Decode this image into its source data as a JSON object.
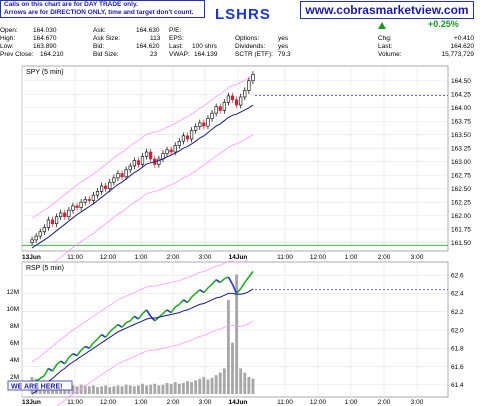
{
  "note": {
    "line1": "Calls on this chart are for DAY TRADE only.",
    "line2": "Arrows are for DIRECTION ONLY, time and target don't count."
  },
  "ticker": "LSHRS",
  "site": "www.cobrasmarketview.com",
  "quote": {
    "open_label": "Open:",
    "open": "164.030",
    "high_label": "High:",
    "high": "164.670",
    "low_label": "Low:",
    "low": "163.890",
    "prevclose_label": "Prev Close:",
    "prevclose": "164.210",
    "ask_label": "Ask:",
    "ask": "164.630",
    "asksize_label": "Ask Size:",
    "asksize": "113",
    "bid_label": "Bid:",
    "bid": "164.620",
    "bidsize_label": "Bid Size:",
    "bidsize": "23",
    "pe_label": "P/E:",
    "pe": "",
    "eps_label": "EPS:",
    "eps": "",
    "last_label": "Last:",
    "last_size": "100 shrs",
    "vwap_label": "VWAP:",
    "vwap": "164.139",
    "options_label": "Options:",
    "options": "yes",
    "dividends_label": "Dividends:",
    "dividends": "yes",
    "sctr_label": "SCTR (ETF):",
    "sctr": "79.3",
    "change_pct": "+0.25%",
    "chg_label": "Chg:",
    "chg": "+0.410",
    "last2_label": "Last:",
    "last2": "164.620",
    "volume_label": "Volume:",
    "volume": "15,773,729"
  },
  "colors": {
    "up": "#1a9a1a",
    "down": "#cc2233",
    "ma": "#1a1a8a",
    "band": "#ff99ff",
    "dotted": "#3333cc",
    "rsp_green": "#22aa22",
    "rsp_blue": "#2233cc"
  },
  "chart_data": [
    {
      "type": "candlestick",
      "label": "SPY (5 min)",
      "ylim": [
        161.4,
        164.7
      ],
      "yticks": [
        161.5,
        161.75,
        162.0,
        162.25,
        162.5,
        162.75,
        163.0,
        163.25,
        163.5,
        163.75,
        164.0,
        164.25,
        164.5
      ],
      "ytick_labels": [
        "161.50",
        "161.75",
        "162.00",
        "162.25",
        "162.50",
        "162.75",
        "163.00",
        "163.25",
        "163.50",
        "163.75",
        "164.00",
        "164.25",
        "164.50"
      ],
      "x_labels": [
        "13Jun",
        "11:00",
        "12:00",
        "1:00",
        "2:00",
        "3:00",
        "14Jun",
        "11:00",
        "12:00",
        "1:00",
        "2:00",
        "3:00"
      ],
      "close": [
        161.55,
        161.62,
        161.7,
        161.78,
        161.92,
        161.85,
        161.98,
        162.05,
        161.98,
        162.1,
        162.18,
        162.15,
        162.25,
        162.3,
        162.28,
        162.38,
        162.45,
        162.55,
        162.5,
        162.62,
        162.7,
        162.78,
        162.72,
        162.85,
        162.92,
        163.02,
        162.95,
        163.1,
        163.18,
        163.05,
        162.95,
        163.05,
        163.15,
        163.22,
        163.18,
        163.3,
        163.38,
        163.48,
        163.42,
        163.58,
        163.65,
        163.72,
        163.66,
        163.8,
        163.9,
        164.02,
        163.95,
        164.1,
        164.22,
        164.15,
        164.05,
        164.2,
        164.32,
        164.5,
        164.62
      ],
      "moving_average": [
        161.4,
        161.45,
        161.5,
        161.55,
        161.6,
        161.66,
        161.72,
        161.78,
        161.84,
        161.9,
        161.96,
        162.02,
        162.07,
        162.12,
        162.17,
        162.22,
        162.28,
        162.34,
        162.4,
        162.46,
        162.52,
        162.58,
        162.62,
        162.68,
        162.74,
        162.8,
        162.84,
        162.9,
        162.96,
        162.98,
        163.0,
        163.02,
        163.05,
        163.09,
        163.12,
        163.16,
        163.2,
        163.25,
        163.28,
        163.33,
        163.38,
        163.44,
        163.48,
        163.54,
        163.6,
        163.66,
        163.7,
        163.76,
        163.82,
        163.86,
        163.88,
        163.92,
        163.96,
        164.0,
        164.05
      ],
      "dotted_level": 164.23
    },
    {
      "type": "line+bar",
      "label": "RSP (5 min)",
      "ylim": [
        61.3,
        62.7
      ],
      "yticks": [
        61.4,
        61.6,
        61.8,
        62.0,
        62.2,
        62.4,
        62.6
      ],
      "ytick_labels": [
        "61.4",
        "61.6",
        "61.8",
        "62.0",
        "62.2",
        "62.4",
        "62.6"
      ],
      "volume_ticks": [
        "2M",
        "4M",
        "6M",
        "8M",
        "10M",
        "12M"
      ],
      "volume_tick_values": [
        2,
        4,
        6,
        8,
        10,
        12
      ],
      "volume_max": 15,
      "x_labels": [
        "13Jun",
        "11:00",
        "12:00",
        "1:00",
        "2:00",
        "3:00",
        "14Jun",
        "11:00",
        "12:00",
        "1:00",
        "2:00",
        "3:00"
      ],
      "close": [
        61.4,
        61.44,
        61.47,
        61.5,
        61.58,
        61.55,
        61.62,
        61.66,
        61.63,
        61.7,
        61.74,
        61.72,
        61.78,
        61.82,
        61.8,
        61.86,
        61.9,
        61.95,
        61.92,
        61.98,
        62.02,
        62.06,
        62.03,
        62.08,
        62.1,
        62.15,
        62.12,
        62.18,
        62.22,
        62.15,
        62.1,
        62.14,
        62.18,
        62.22,
        62.19,
        62.25,
        62.28,
        62.33,
        62.3,
        62.36,
        62.4,
        62.44,
        62.41,
        62.46,
        62.5,
        62.55,
        62.52,
        62.56,
        62.58,
        62.5,
        62.4,
        62.45,
        62.52,
        62.58,
        62.64
      ],
      "moving_average": [
        61.3,
        61.33,
        61.36,
        61.4,
        61.44,
        61.47,
        61.51,
        61.55,
        61.58,
        61.62,
        61.65,
        61.68,
        61.71,
        61.74,
        61.77,
        61.8,
        61.83,
        61.86,
        61.89,
        61.92,
        61.95,
        61.98,
        62.0,
        62.02,
        62.04,
        62.06,
        62.08,
        62.1,
        62.12,
        62.13,
        62.13,
        62.14,
        62.15,
        62.16,
        62.17,
        62.18,
        62.19,
        62.21,
        62.22,
        62.24,
        62.26,
        62.28,
        62.29,
        62.31,
        62.33,
        62.35,
        62.36,
        62.38,
        62.4,
        62.4,
        62.39,
        62.39,
        62.4,
        62.42,
        62.45
      ],
      "volume": [
        2.0,
        1.8,
        1.5,
        1.6,
        1.3,
        1.2,
        1.4,
        1.1,
        1.0,
        1.2,
        1.0,
        0.9,
        1.1,
        1.0,
        0.9,
        1.0,
        0.8,
        0.9,
        1.0,
        0.8,
        0.9,
        1.0,
        0.9,
        1.1,
        1.0,
        0.9,
        1.0,
        1.2,
        1.0,
        1.1,
        1.2,
        1.0,
        1.1,
        1.3,
        1.2,
        1.4,
        1.2,
        1.3,
        1.5,
        1.4,
        1.6,
        1.8,
        2.0,
        1.7,
        1.9,
        2.2,
        2.5,
        3.0,
        11.0,
        6.0,
        14.0,
        3.0,
        2.5,
        2.0,
        1.8
      ],
      "dotted_level": 62.44,
      "annotation": "WE ARE HERE!"
    }
  ]
}
